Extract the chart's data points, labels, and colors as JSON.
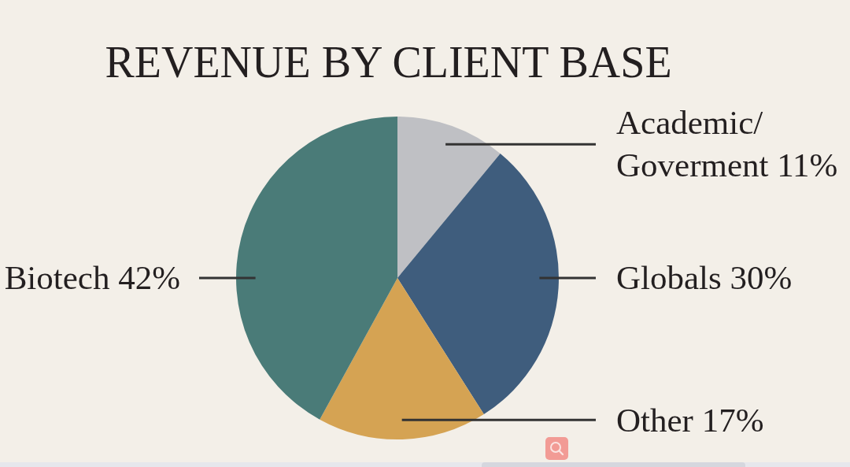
{
  "chart_data": {
    "type": "pie",
    "title": "REVENUE BY CLIENT BASE",
    "categories": [
      "Academic/Goverment",
      "Globals",
      "Other",
      "Biotech"
    ],
    "values": [
      11,
      30,
      17,
      42
    ],
    "colors": [
      "#bfc0c4",
      "#3f5d7d",
      "#d5a353",
      "#4a7b78"
    ],
    "value_labels": [
      "11%",
      "30%",
      "17%",
      "42%"
    ]
  }
}
